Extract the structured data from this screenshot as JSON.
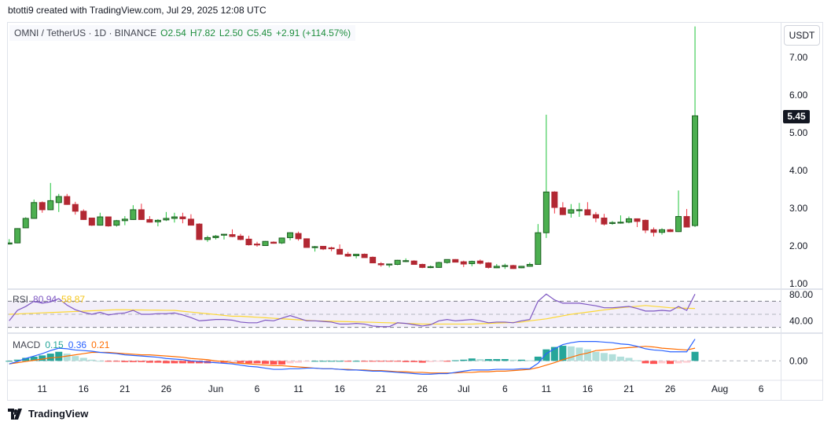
{
  "credit": "btotti9 created with TradingView.com, Jul 29, 2025 12:08 UTC",
  "legend": {
    "symbol": "OMNI / TetherUS · 1D · BINANCE",
    "open": "O2.54",
    "high": "H7.82",
    "low": "L2.50",
    "close": "C5.45",
    "change": "+2.91 (+114.57%)"
  },
  "currency_button": "USDT",
  "last_price": "5.45",
  "rsi_legend": {
    "name": "RSI",
    "value": "80.94",
    "ma": "58.87"
  },
  "macd_legend": {
    "name": "MACD",
    "hist": "0.15",
    "macd": "0.36",
    "signal": "0.21"
  },
  "footer": {
    "brand": "TradingView"
  },
  "colors": {
    "up": "#4caf50",
    "down": "#b22833",
    "rsi": "#7e57c2",
    "rsi_ma": "#fdd835",
    "macd": "#2962ff",
    "signal": "#ff6d00",
    "hist_up": "#26a69a",
    "hist_up_light": "#b2dfdb",
    "hist_down": "#ff5252",
    "hist_down_light": "#ffcdd2"
  },
  "chart_data": {
    "type": "candlestick",
    "title": "OMNI / TetherUS · 1D · BINANCE",
    "first_date": "2025-05-07",
    "price_ticks": [
      "7.00",
      "6.00",
      "5.00",
      "4.00",
      "3.00",
      "2.00",
      "1.00"
    ],
    "rsi_ticks": [
      "80.00",
      "40.00"
    ],
    "macd_ticks": [
      "0.00"
    ],
    "x_ticks": [
      {
        "label": "11",
        "day": 4
      },
      {
        "label": "16",
        "day": 9
      },
      {
        "label": "21",
        "day": 14
      },
      {
        "label": "26",
        "day": 19
      },
      {
        "label": "Jun",
        "day": 25
      },
      {
        "label": "6",
        "day": 30
      },
      {
        "label": "11",
        "day": 35
      },
      {
        "label": "16",
        "day": 40
      },
      {
        "label": "21",
        "day": 45
      },
      {
        "label": "26",
        "day": 50
      },
      {
        "label": "Jul",
        "day": 55
      },
      {
        "label": "6",
        "day": 60
      },
      {
        "label": "11",
        "day": 65
      },
      {
        "label": "16",
        "day": 70
      },
      {
        "label": "21",
        "day": 75
      },
      {
        "label": "26",
        "day": 80
      },
      {
        "label": "Aug",
        "day": 86
      },
      {
        "label": "6",
        "day": 91
      }
    ],
    "ohlc": [
      [
        2.05,
        2.18,
        2.04,
        2.08
      ],
      [
        2.08,
        2.47,
        2.07,
        2.46
      ],
      [
        2.48,
        2.76,
        2.47,
        2.73
      ],
      [
        2.73,
        3.23,
        2.72,
        3.15
      ],
      [
        3.15,
        3.18,
        2.88,
        2.96
      ],
      [
        2.96,
        3.67,
        2.95,
        3.2
      ],
      [
        3.15,
        3.38,
        2.9,
        3.31
      ],
      [
        3.31,
        3.38,
        3.09,
        3.1
      ],
      [
        3.1,
        3.17,
        2.83,
        2.92
      ],
      [
        2.92,
        2.97,
        2.69,
        2.7
      ],
      [
        2.74,
        2.75,
        2.53,
        2.55
      ],
      [
        2.55,
        2.88,
        2.54,
        2.77
      ],
      [
        2.77,
        2.78,
        2.51,
        2.53
      ],
      [
        2.55,
        2.69,
        2.51,
        2.67
      ],
      [
        2.67,
        2.79,
        2.55,
        2.71
      ],
      [
        2.7,
        3.08,
        2.69,
        2.96
      ],
      [
        2.96,
        3.12,
        2.69,
        2.7
      ],
      [
        2.7,
        2.79,
        2.62,
        2.63
      ],
      [
        2.64,
        2.71,
        2.52,
        2.68
      ],
      [
        2.69,
        2.9,
        2.66,
        2.73
      ],
      [
        2.73,
        2.88,
        2.62,
        2.77
      ],
      [
        2.77,
        2.88,
        2.6,
        2.72
      ],
      [
        2.71,
        2.84,
        2.55,
        2.55
      ],
      [
        2.58,
        2.6,
        2.16,
        2.17
      ],
      [
        2.17,
        2.27,
        2.11,
        2.22
      ],
      [
        2.22,
        2.29,
        2.17,
        2.26
      ],
      [
        2.29,
        2.32,
        2.17,
        2.31
      ],
      [
        2.3,
        2.44,
        2.23,
        2.25
      ],
      [
        2.26,
        2.32,
        2.15,
        2.17
      ],
      [
        2.18,
        2.27,
        2.01,
        2.03
      ],
      [
        2.05,
        2.11,
        1.98,
        2.04
      ],
      [
        2.01,
        2.13,
        2.0,
        2.12
      ],
      [
        2.1,
        2.12,
        2.06,
        2.07
      ],
      [
        2.08,
        2.22,
        2.05,
        2.21
      ],
      [
        2.22,
        2.36,
        2.15,
        2.35
      ],
      [
        2.33,
        2.38,
        2.14,
        2.19
      ],
      [
        2.19,
        2.2,
        1.96,
        1.96
      ],
      [
        1.97,
        2.0,
        1.85,
        1.98
      ],
      [
        1.99,
        2.0,
        1.89,
        1.92
      ],
      [
        1.95,
        1.98,
        1.86,
        1.94
      ],
      [
        1.91,
        2.04,
        1.78,
        1.78
      ],
      [
        1.78,
        1.84,
        1.71,
        1.73
      ],
      [
        1.74,
        1.78,
        1.67,
        1.78
      ],
      [
        1.78,
        1.8,
        1.69,
        1.69
      ],
      [
        1.7,
        1.72,
        1.55,
        1.55
      ],
      [
        1.53,
        1.57,
        1.45,
        1.5
      ],
      [
        1.51,
        1.53,
        1.43,
        1.52
      ],
      [
        1.51,
        1.63,
        1.49,
        1.62
      ],
      [
        1.6,
        1.67,
        1.57,
        1.61
      ],
      [
        1.6,
        1.62,
        1.51,
        1.51
      ],
      [
        1.51,
        1.53,
        1.41,
        1.43
      ],
      [
        1.44,
        1.48,
        1.41,
        1.45
      ],
      [
        1.43,
        1.58,
        1.42,
        1.56
      ],
      [
        1.56,
        1.64,
        1.53,
        1.64
      ],
      [
        1.64,
        1.65,
        1.57,
        1.57
      ],
      [
        1.58,
        1.61,
        1.44,
        1.52
      ],
      [
        1.53,
        1.61,
        1.46,
        1.59
      ],
      [
        1.6,
        1.64,
        1.51,
        1.54
      ],
      [
        1.55,
        1.57,
        1.4,
        1.43
      ],
      [
        1.42,
        1.52,
        1.41,
        1.46
      ],
      [
        1.46,
        1.53,
        1.39,
        1.48
      ],
      [
        1.48,
        1.5,
        1.39,
        1.4
      ],
      [
        1.42,
        1.47,
        1.41,
        1.46
      ],
      [
        1.46,
        1.56,
        1.45,
        1.51
      ],
      [
        1.51,
        2.58,
        1.5,
        2.35
      ],
      [
        2.35,
        5.48,
        2.21,
        3.43
      ],
      [
        3.43,
        3.45,
        2.86,
        3.02
      ],
      [
        3.01,
        3.16,
        2.82,
        2.83
      ],
      [
        2.87,
        3.11,
        2.75,
        2.96
      ],
      [
        2.95,
        3.14,
        2.77,
        2.96
      ],
      [
        2.96,
        3.16,
        2.82,
        2.82
      ],
      [
        2.83,
        2.9,
        2.63,
        2.74
      ],
      [
        2.74,
        2.85,
        2.54,
        2.58
      ],
      [
        2.61,
        2.66,
        2.56,
        2.62
      ],
      [
        2.62,
        2.81,
        2.59,
        2.63
      ],
      [
        2.63,
        2.78,
        2.6,
        2.72
      ],
      [
        2.72,
        2.73,
        2.5,
        2.65
      ],
      [
        2.68,
        2.7,
        2.34,
        2.42
      ],
      [
        2.43,
        2.49,
        2.25,
        2.36
      ],
      [
        2.36,
        2.47,
        2.3,
        2.43
      ],
      [
        2.43,
        2.45,
        2.37,
        2.38
      ],
      [
        2.38,
        3.47,
        2.37,
        2.78
      ],
      [
        2.78,
        2.98,
        2.5,
        2.5
      ],
      [
        2.54,
        7.82,
        2.5,
        5.45
      ]
    ],
    "rsi": [
      40,
      56,
      62,
      70,
      67,
      69,
      74,
      64,
      57,
      53,
      50,
      53,
      49,
      51,
      52,
      56,
      50,
      50,
      51,
      51,
      52,
      49,
      45,
      40,
      41,
      42,
      42,
      41,
      38,
      37,
      37,
      41,
      40,
      44,
      48,
      44,
      40,
      40,
      39,
      38,
      35,
      35,
      36,
      35,
      32,
      31,
      31,
      37,
      36,
      34,
      32,
      34,
      40,
      42,
      40,
      41,
      42,
      40,
      37,
      38,
      38,
      37,
      40,
      42,
      70,
      81,
      72,
      67,
      67,
      67,
      65,
      63,
      60,
      60,
      61,
      62,
      59,
      55,
      55,
      56,
      55,
      62,
      56,
      80.94
    ],
    "rsi_ma": [
      50,
      50.5,
      51.1,
      51.6,
      52.2,
      52.7,
      53.2,
      53.8,
      54.3,
      54.8,
      55.4,
      55.9,
      56.5,
      57,
      56.9,
      56.7,
      56.6,
      56.4,
      56.3,
      56.1,
      56,
      54.7,
      53.4,
      52.1,
      50.9,
      49.6,
      48.3,
      47,
      47,
      46.2,
      45.4,
      44.7,
      43.9,
      43.1,
      42.3,
      41.6,
      40.8,
      40,
      39.7,
      39.3,
      39,
      38.7,
      38.3,
      38,
      37.7,
      37.3,
      37,
      36.5,
      36,
      35.5,
      35,
      35,
      35,
      35,
      35,
      35,
      35,
      35.5,
      36,
      36.5,
      37,
      37.5,
      38,
      40,
      41.5,
      43,
      45.3,
      47.7,
      50,
      51.7,
      53.3,
      55,
      56.7,
      58.3,
      60,
      61.2,
      62.3,
      63.5,
      62.3,
      61.2,
      60,
      59.6,
      59.2,
      58.87
    ],
    "rsi_levels": [
      70,
      50,
      30
    ],
    "macd": [
      -0.05,
      -0.01,
      0.04,
      0.08,
      0.12,
      0.17,
      0.21,
      0.2,
      0.18,
      0.17,
      0.16,
      0.14,
      0.13,
      0.12,
      0.1,
      0.09,
      0.08,
      0.07,
      0.06,
      0.04,
      0.03,
      0.02,
      0.0,
      -0.01,
      -0.02,
      -0.03,
      -0.04,
      -0.05,
      -0.07,
      -0.09,
      -0.1,
      -0.12,
      -0.14,
      -0.14,
      -0.13,
      -0.13,
      -0.12,
      -0.12,
      -0.13,
      -0.13,
      -0.14,
      -0.15,
      -0.15,
      -0.16,
      -0.17,
      -0.17,
      -0.18,
      -0.19,
      -0.2,
      -0.21,
      -0.22,
      -0.22,
      -0.21,
      -0.21,
      -0.19,
      -0.17,
      -0.15,
      -0.15,
      -0.15,
      -0.14,
      -0.14,
      -0.14,
      -0.13,
      -0.13,
      -0.04,
      0.12,
      0.2,
      0.27,
      0.3,
      0.32,
      0.32,
      0.32,
      0.31,
      0.3,
      0.28,
      0.27,
      0.24,
      0.2,
      0.18,
      0.17,
      0.15,
      0.15,
      0.15,
      0.36
    ],
    "signal": [
      -0.05,
      -0.03,
      -0.01,
      0.01,
      0.03,
      0.05,
      0.06,
      0.08,
      0.1,
      0.12,
      0.14,
      0.14,
      0.14,
      0.13,
      0.12,
      0.11,
      0.1,
      0.1,
      0.09,
      0.08,
      0.07,
      0.06,
      0.04,
      0.03,
      0.02,
      0.0,
      -0.01,
      -0.03,
      -0.04,
      -0.05,
      -0.06,
      -0.07,
      -0.08,
      -0.08,
      -0.09,
      -0.1,
      -0.11,
      -0.12,
      -0.13,
      -0.13,
      -0.14,
      -0.14,
      -0.15,
      -0.15,
      -0.16,
      -0.16,
      -0.17,
      -0.18,
      -0.18,
      -0.19,
      -0.19,
      -0.2,
      -0.2,
      -0.2,
      -0.2,
      -0.19,
      -0.19,
      -0.18,
      -0.18,
      -0.17,
      -0.17,
      -0.16,
      -0.15,
      -0.14,
      -0.11,
      -0.07,
      -0.03,
      0.02,
      0.06,
      0.1,
      0.13,
      0.17,
      0.18,
      0.19,
      0.21,
      0.22,
      0.23,
      0.24,
      0.23,
      0.21,
      0.2,
      0.19,
      0.18,
      0.21
    ]
  }
}
